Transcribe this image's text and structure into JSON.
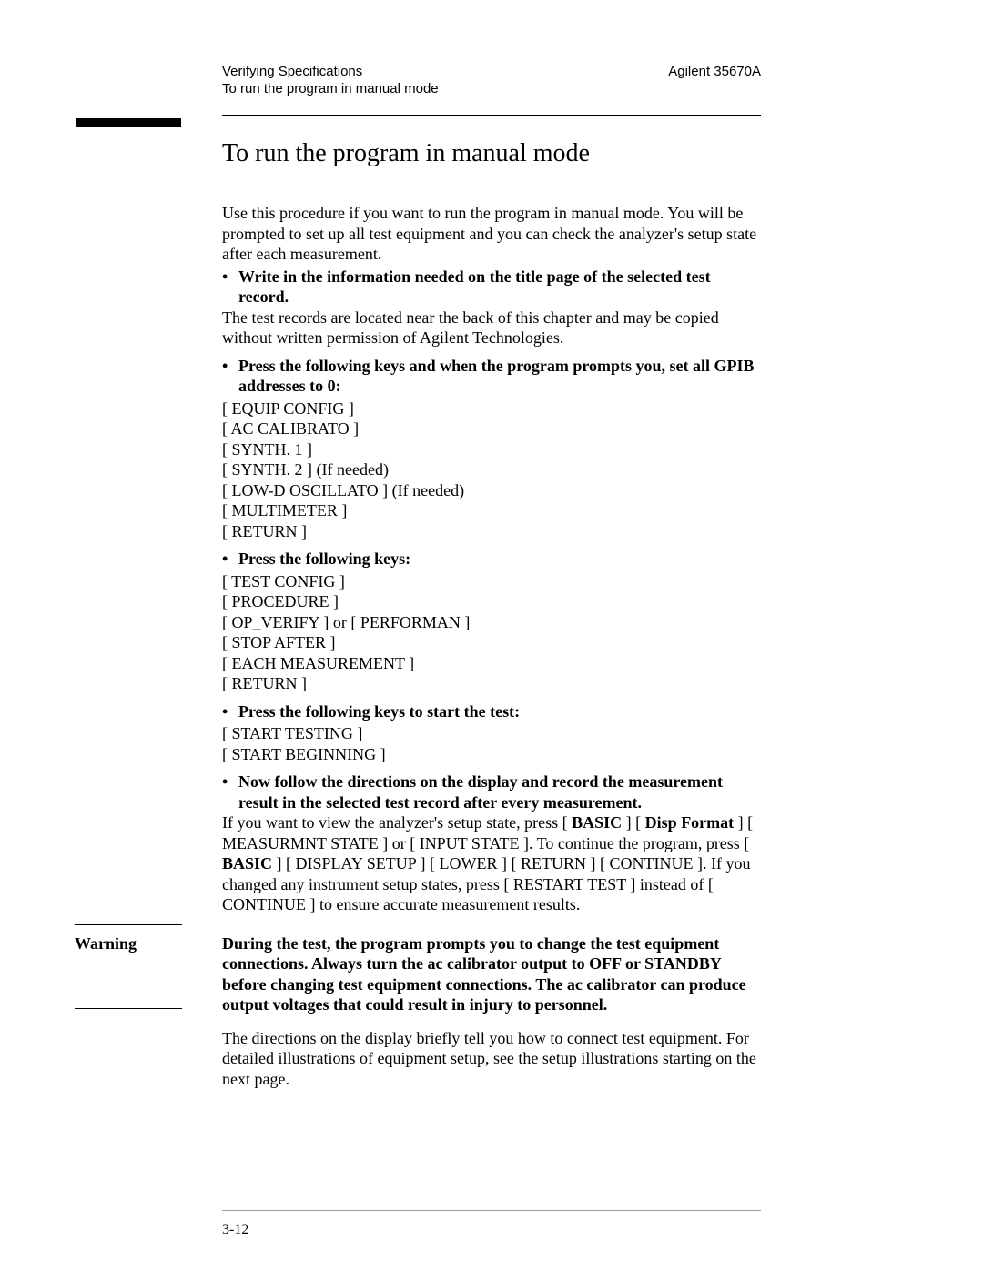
{
  "header": {
    "left_line1": "Verifying Specifications",
    "left_line2": "To run the program in manual mode",
    "right": "Agilent 35670A"
  },
  "title": "To run the program in manual mode",
  "para_intro": "Use this procedure if you want to run the program in manual mode.  You will be prompted to set up all test equipment and you can check the analyzer's setup state after each measurement.",
  "bullet1": "Write in the information needed on the title page of the selected test record.",
  "para_records": "The test records are located near the back of this chapter and may be copied without written permission of Agilent Technologies.",
  "bullet2": "Press the following keys and when the program prompts you, set all GPIB addresses to 0:",
  "keys1": {
    "l1": "[ EQUIP CONFIG ]",
    "l2": "[ AC CALIBRATO ]",
    "l3": "[ SYNTH. 1 ]",
    "l4": "[ SYNTH. 2 ] (If needed)",
    "l5": "[ LOW-D OSCILLATO ] (If needed)",
    "l6": "[ MULTIMETER ]",
    "l7": "[ RETURN ]"
  },
  "bullet3": "Press the following keys:",
  "keys2": {
    "l1": "[ TEST CONFIG ]",
    "l2": "[ PROCEDURE ]",
    "l3": "[ OP_VERIFY ]  or [ PERFORMAN ]",
    "l4": "[ STOP AFTER ]",
    "l5": "[ EACH MEASUREMENT ]",
    "l6": "[ RETURN ]"
  },
  "bullet4": "Press the following keys to start the test:",
  "keys3": {
    "l1": "[ START TESTING ]",
    "l2": "[ START BEGINNING ]"
  },
  "bullet5": "Now follow the directions on the display and record the measurement result in the selected test record after every measurement.",
  "setup_para": {
    "t1": "If you want to view the analyzer's setup state, press [ ",
    "b1": "BASIC",
    "t2": " ] [ ",
    "b2": "Disp Format",
    "t3": " ] [ MEASURMNT STATE ] or [ INPUT STATE ].  To continue the program, press [ ",
    "b3": "BASIC",
    "t4": " ] [ DISPLAY SETUP ] [ LOWER ] [ RETURN ] [ CONTINUE ].  If you changed any instrument setup states, press [ RESTART TEST ] instead of [ CONTINUE ] to ensure accurate measurement results."
  },
  "warning": {
    "label": "Warning",
    "body": "During the test, the program prompts you to change the test equipment connections.  Always turn the ac calibrator output to OFF or STANDBY before changing test equipment connections.  The ac calibrator can produce output voltages that could result in injury to personnel."
  },
  "para_end": "The directions on the display briefly tell you how to connect test equipment.  For detailed illustrations of equipment setup, see the setup illustrations starting on the next page.",
  "page_number": "3-12"
}
